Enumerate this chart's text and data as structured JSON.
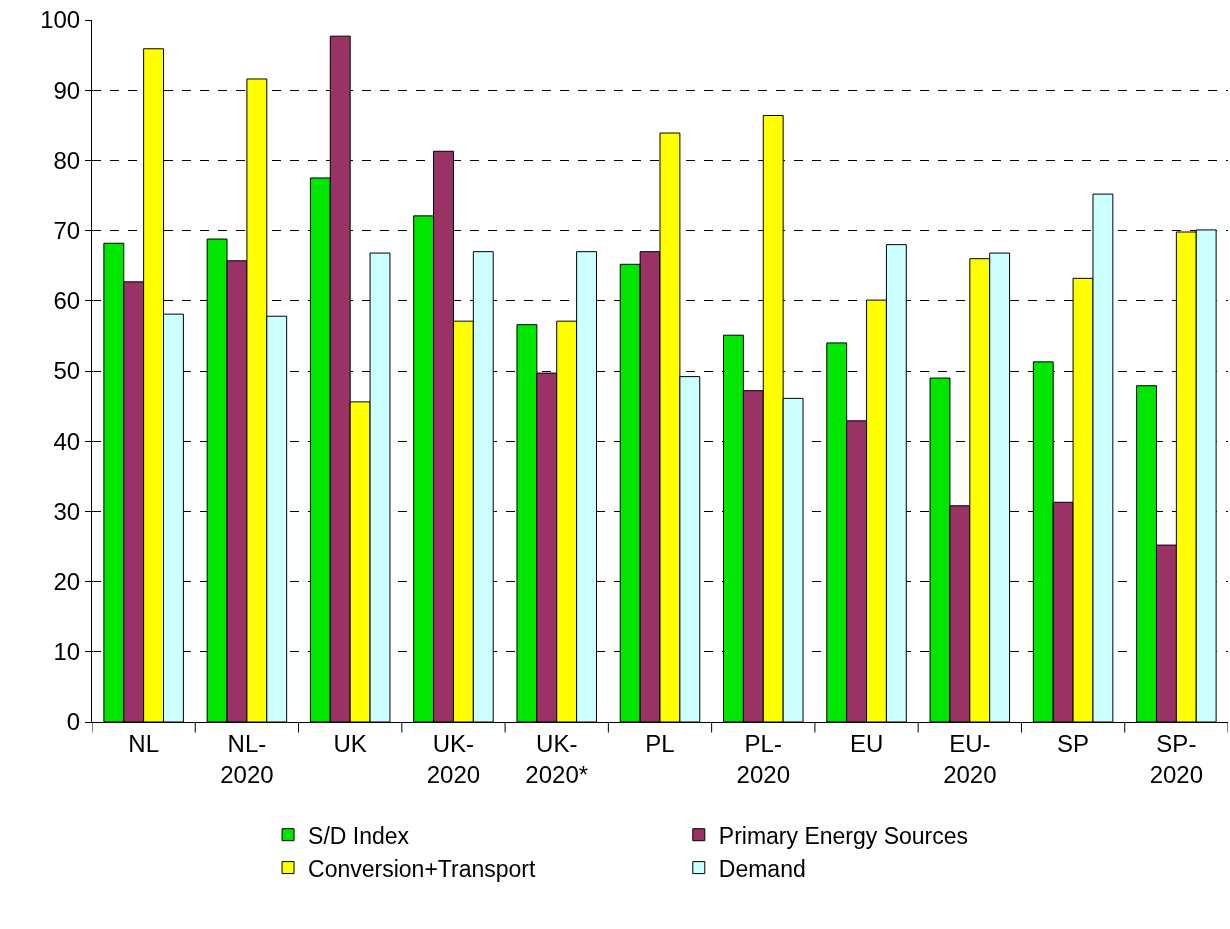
{
  "chart_data": {
    "type": "bar",
    "categories": [
      "NL",
      "NL-\n2020",
      "UK",
      "UK-\n2020",
      "UK-\n2020*",
      "PL",
      "PL-\n2020",
      "EU",
      "EU-\n2020",
      "SP",
      "SP-\n2020"
    ],
    "series": [
      {
        "name": "S/D Index",
        "color": "#00e600",
        "values": [
          68.2,
          68.8,
          77.5,
          72.1,
          56.6,
          65.2,
          55.1,
          54.0,
          49.0,
          51.3,
          47.9
        ]
      },
      {
        "name": "Primary Energy Sources",
        "color": "#993366",
        "values": [
          62.7,
          65.7,
          97.7,
          81.3,
          49.7,
          67.0,
          47.2,
          42.9,
          30.8,
          31.3,
          25.2
        ]
      },
      {
        "name": "Conversion+Transport",
        "color": "#ffff00",
        "values": [
          95.9,
          91.6,
          45.6,
          57.1,
          57.1,
          83.9,
          86.4,
          60.1,
          66.0,
          63.2,
          69.8
        ]
      },
      {
        "name": "Demand",
        "color": "#ccffff",
        "values": [
          58.1,
          57.8,
          66.8,
          67.0,
          67.0,
          49.2,
          46.1,
          68.0,
          66.8,
          75.2,
          70.1
        ]
      }
    ],
    "ylim": [
      0,
      100
    ],
    "yticks": [
      0,
      10,
      20,
      30,
      40,
      50,
      60,
      70,
      80,
      90,
      100
    ],
    "grid": "y",
    "legend": "bottom"
  }
}
